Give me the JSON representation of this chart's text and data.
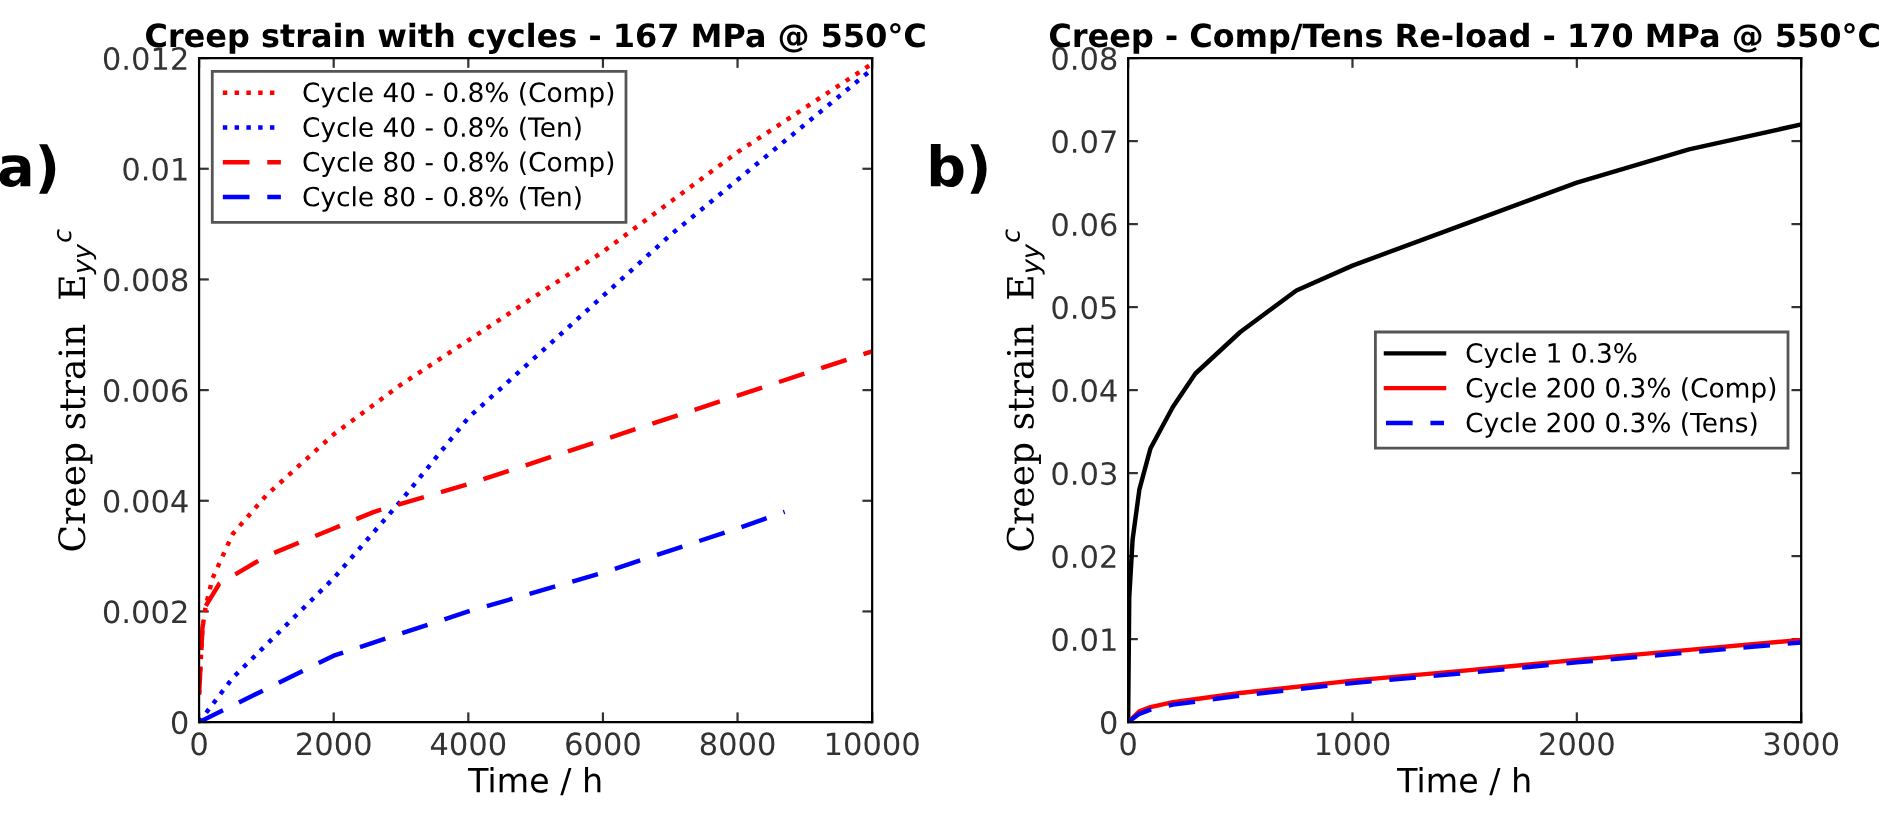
{
  "chart_data": [
    {
      "type": "line",
      "title": "Creep strain with cycles - 167 MPa @ 550°C",
      "xlabel": "Time / h",
      "ylabel": "Creep strain  E$_{yy}$$^{c}$",
      "annotations": [
        "a)"
      ],
      "xlim": [
        0,
        10000
      ],
      "xticks": [
        0,
        2000,
        4000,
        6000,
        8000,
        10000
      ],
      "ylim": [
        0,
        0.012
      ],
      "yticks": [
        0,
        0.002,
        0.004,
        0.006,
        0.008,
        0.01,
        0.012
      ],
      "legend": "top left",
      "grid": false,
      "series": [
        {
          "name": "Cycle 40 - 0.8% (Comp)",
          "color": "#ff0000",
          "line_style": "dotted",
          "x": [
            0,
            50,
            100,
            200,
            500,
            1000,
            2000,
            3000,
            4000,
            5000,
            6000,
            7000,
            8000,
            9000,
            10000
          ],
          "values": [
            0.0005,
            0.0017,
            0.0021,
            0.0026,
            0.0034,
            0.0041,
            0.0052,
            0.0061,
            0.0069,
            0.0077,
            0.0085,
            0.0094,
            0.0103,
            0.0111,
            0.0119
          ]
        },
        {
          "name": "Cycle 40 - 0.8% (Ten)",
          "color": "#0000ff",
          "line_style": "dotted",
          "x": [
            0,
            500,
            1000,
            1500,
            2000,
            2500,
            3000,
            4000,
            5000,
            6000,
            7000,
            8000,
            9000,
            10000
          ],
          "values": [
            0,
            0.0008,
            0.0014,
            0.002,
            0.0026,
            0.0033,
            0.004,
            0.0055,
            0.0066,
            0.0077,
            0.0088,
            0.0098,
            0.0108,
            0.0118
          ]
        },
        {
          "name": "Cycle 80 - 0.8% (Comp)",
          "color": "#ff0000",
          "line_style": "dashed",
          "x": [
            0,
            50,
            100,
            300,
            1000,
            2000,
            2600,
            4000,
            6000,
            8000,
            10000
          ],
          "values": [
            0.0005,
            0.0017,
            0.0021,
            0.0025,
            0.003,
            0.0035,
            0.0038,
            0.0043,
            0.0051,
            0.0059,
            0.0067
          ]
        },
        {
          "name": "Cycle 80 - 0.8% (Ten)",
          "color": "#0000ff",
          "line_style": "dashed",
          "x": [
            0,
            2000,
            4000,
            6000,
            8000,
            8700
          ],
          "values": [
            0,
            0.0012,
            0.002,
            0.0027,
            0.0035,
            0.0038
          ]
        }
      ]
    },
    {
      "type": "line",
      "title": "Creep - Comp/Tens Re-load - 170 MPa @ 550°C",
      "xlabel": "Time / h",
      "ylabel": "Creep strain  E$_{yy}$$^{c}$",
      "annotations": [
        "b)"
      ],
      "xlim": [
        0,
        3000
      ],
      "xticks": [
        0,
        1000,
        2000,
        3000
      ],
      "ylim": [
        0,
        0.08
      ],
      "yticks": [
        0,
        0.01,
        0.02,
        0.03,
        0.04,
        0.05,
        0.06,
        0.07,
        0.08
      ],
      "legend": "right",
      "grid": false,
      "series": [
        {
          "name": "Cycle 1 0.3%",
          "color": "#000000",
          "line_style": "solid",
          "x": [
            0,
            5,
            20,
            50,
            100,
            200,
            300,
            500,
            750,
            1000,
            1500,
            2000,
            2500,
            3000
          ],
          "values": [
            0,
            0.015,
            0.022,
            0.028,
            0.033,
            0.038,
            0.042,
            0.047,
            0.052,
            0.055,
            0.06,
            0.065,
            0.069,
            0.072
          ]
        },
        {
          "name": "Cycle 200 0.3% (Comp)",
          "color": "#ff0000",
          "line_style": "solid",
          "x": [
            0,
            50,
            100,
            200,
            500,
            1000,
            1500,
            2000,
            2500,
            3000
          ],
          "values": [
            0,
            0.0013,
            0.0018,
            0.0024,
            0.0035,
            0.005,
            0.0062,
            0.0075,
            0.0087,
            0.0099
          ]
        },
        {
          "name": "Cycle 200 0.3% (Tens)",
          "color": "#0000ff",
          "line_style": "dashed",
          "x": [
            0,
            50,
            100,
            200,
            500,
            1000,
            1500,
            2000,
            2500,
            3000
          ],
          "values": [
            0,
            0.001,
            0.0015,
            0.0021,
            0.0032,
            0.0047,
            0.0059,
            0.0072,
            0.0084,
            0.0096
          ]
        }
      ]
    }
  ]
}
